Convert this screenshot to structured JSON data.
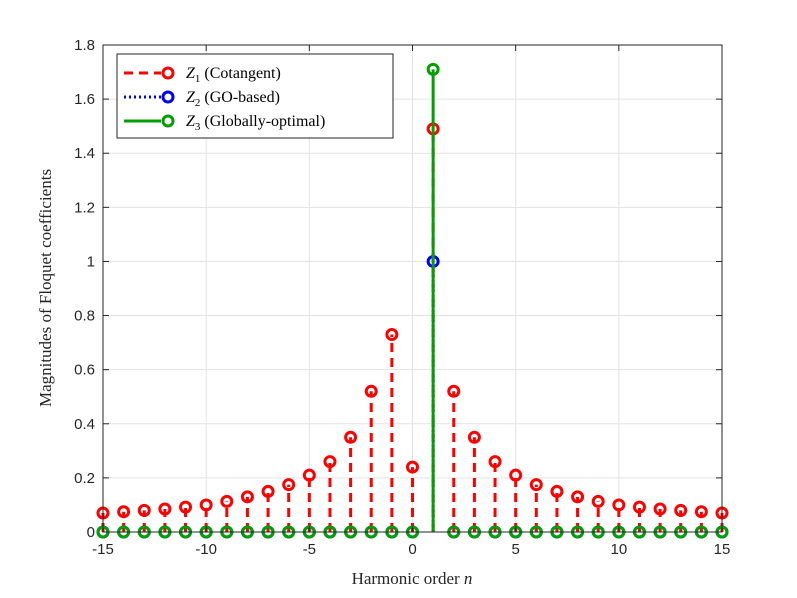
{
  "chart_data": {
    "type": "stem",
    "title": "",
    "xlabel": "Harmonic order",
    "xlabel_var": "n",
    "ylabel": "Magnitudes of Floquet coefficients",
    "xlim": [
      -15,
      15
    ],
    "ylim": [
      0,
      1.8
    ],
    "xticks": [
      -15,
      -10,
      -5,
      0,
      5,
      10,
      15
    ],
    "xtick_labels": [
      "-15",
      "-10",
      "-5",
      "0",
      "5",
      "10",
      "15"
    ],
    "yticks": [
      0,
      0.2,
      0.4,
      0.6,
      0.8,
      1,
      1.2,
      1.4,
      1.6,
      1.8
    ],
    "ytick_labels": [
      "0",
      "0.2",
      "0.4",
      "0.6",
      "0.8",
      "1",
      "1.2",
      "1.4",
      "1.6",
      "1.8"
    ],
    "grid": true,
    "legend_position": "top-left",
    "x": [
      -15,
      -14,
      -13,
      -12,
      -11,
      -10,
      -9,
      -8,
      -7,
      -6,
      -5,
      -4,
      -3,
      -2,
      -1,
      0,
      1,
      2,
      3,
      4,
      5,
      6,
      7,
      8,
      9,
      10,
      11,
      12,
      13,
      14,
      15
    ],
    "series": [
      {
        "symbol": "Z",
        "sub": "1",
        "name": "(Cotangent)",
        "color": "#ff0000",
        "line_style": "dashed",
        "values": [
          0.07,
          0.075,
          0.08,
          0.085,
          0.092,
          0.1,
          0.113,
          0.13,
          0.15,
          0.175,
          0.21,
          0.26,
          0.35,
          0.52,
          0.73,
          0.24,
          1.49,
          0.52,
          0.35,
          0.26,
          0.21,
          0.175,
          0.15,
          0.13,
          0.113,
          0.1,
          0.092,
          0.085,
          0.08,
          0.075,
          0.07
        ]
      },
      {
        "symbol": "Z",
        "sub": "2",
        "name": "(GO-based)",
        "color": "#0000ff",
        "line_style": "dotted",
        "values": [
          0,
          0,
          0,
          0,
          0,
          0,
          0,
          0,
          0,
          0,
          0,
          0,
          0,
          0,
          0,
          0,
          1.0,
          0,
          0,
          0,
          0,
          0,
          0,
          0,
          0,
          0,
          0,
          0,
          0,
          0,
          0
        ]
      },
      {
        "symbol": "Z",
        "sub": "3",
        "name": "(Globally-optimal)",
        "color": "#00a000",
        "line_style": "solid",
        "values": [
          0,
          0,
          0,
          0,
          0,
          0,
          0,
          0,
          0,
          0,
          0,
          0,
          0,
          0,
          0,
          0,
          1.71,
          0,
          0,
          0,
          0,
          0,
          0,
          0,
          0,
          0,
          0,
          0,
          0,
          0,
          0
        ]
      }
    ]
  }
}
